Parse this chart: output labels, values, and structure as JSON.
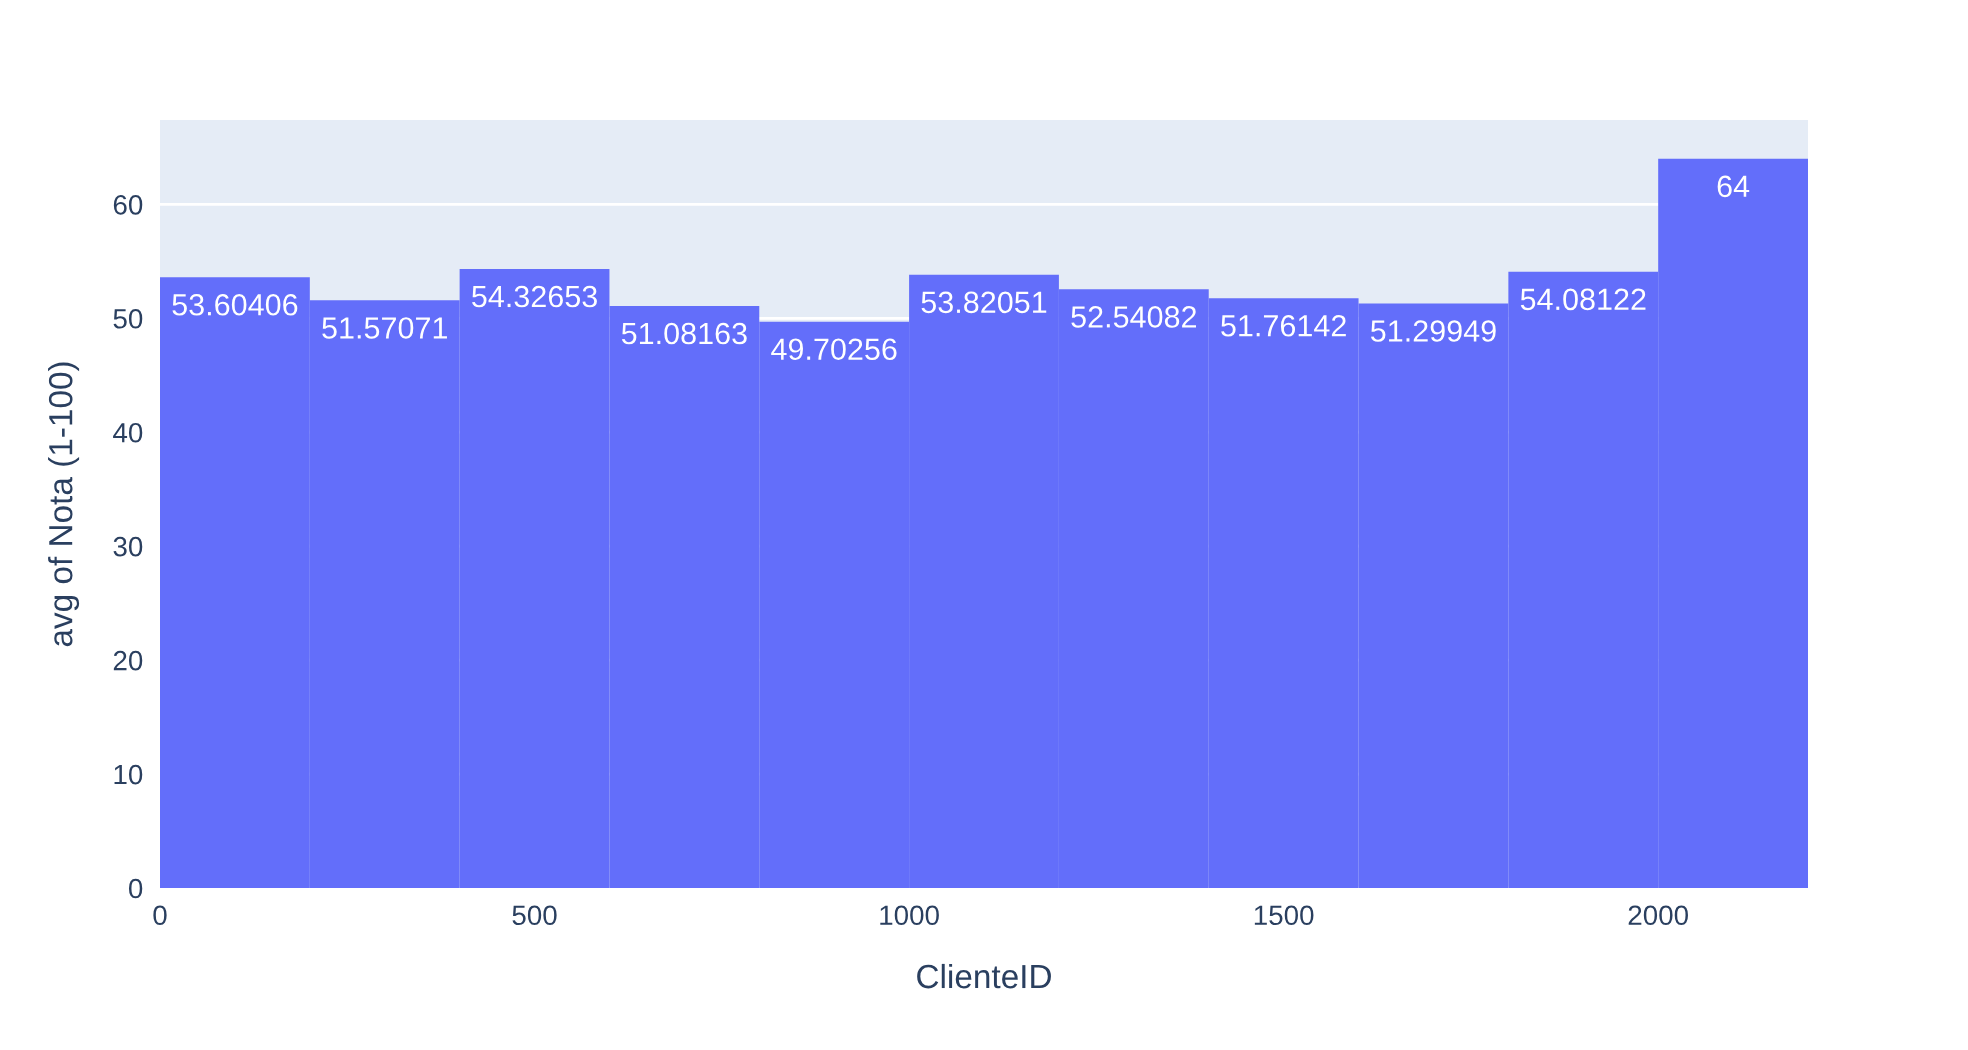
{
  "chart_data": {
    "type": "histogram",
    "xlabel": "ClienteID",
    "ylabel": "avg of Nota (1-100)",
    "bins": [
      0,
      200,
      400,
      600,
      800,
      1000,
      1200,
      1400,
      1600,
      1800,
      2000,
      2200
    ],
    "values": [
      53.60406,
      51.57071,
      54.32653,
      51.08163,
      49.70256,
      53.82051,
      52.54082,
      51.76142,
      51.29949,
      54.08122,
      64
    ],
    "color": "#636efa",
    "xlim": [
      0,
      2200
    ],
    "xticks": [
      0,
      500,
      1000,
      1500,
      2000
    ],
    "ylim": [
      0,
      67.4
    ],
    "yticks": [
      0,
      10,
      20,
      30,
      40,
      50,
      60
    ],
    "grid": "y",
    "data_labels": true
  }
}
